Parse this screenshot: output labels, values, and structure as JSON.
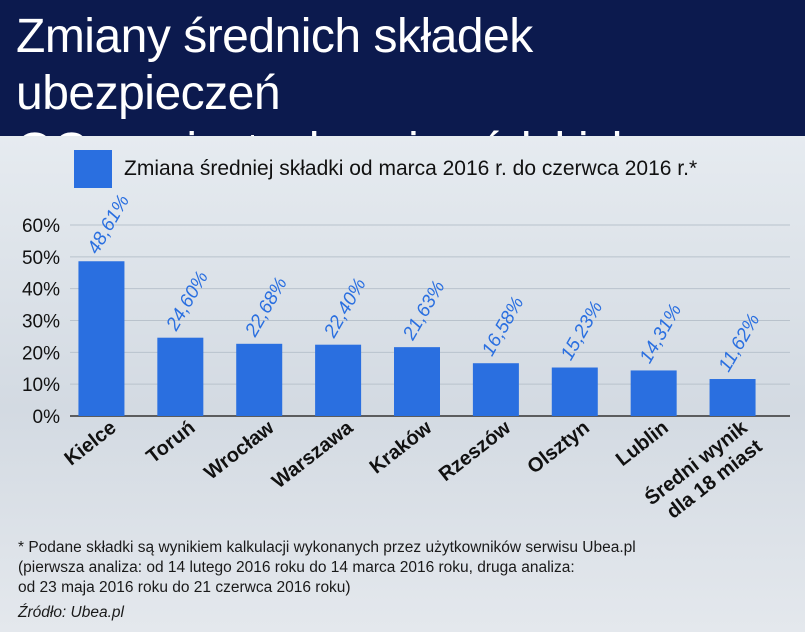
{
  "title": "Zmiany średnich składek ubezpieczeń\nOC w miastach wojewódzkich",
  "legend_label": "Zmiana średniej składki od marca 2016 r. do czerwca 2016 r.*",
  "footnote": "* Podane składki są wynikiem kalkulacji wykonanych przez użytkowników serwisu Ubea.pl\n(pierwsza analiza: od 14 lutego 2016 roku do 14 marca 2016 roku, druga analiza:\nod 23 maja 2016 roku do 21 czerwca 2016 roku)",
  "source": "Źródło: Ubea.pl",
  "colors": {
    "bar": "#2a6fe0",
    "header": "#0c1a4e",
    "label": "#2a6fe0"
  },
  "chart_data": {
    "type": "bar",
    "title": "Zmiany średnich składek ubezpieczeń OC w miastach wojewódzkich",
    "series_name": "Zmiana średniej składki od marca 2016 r. do czerwca 2016 r.*",
    "categories": [
      "Kielce",
      "Toruń",
      "Wrocław",
      "Warszawa",
      "Kraków",
      "Rzeszów",
      "Olsztyn",
      "Lublin",
      "Średni wynik\ndla 18 miast"
    ],
    "values": [
      48.61,
      24.6,
      22.68,
      22.4,
      21.63,
      16.58,
      15.23,
      14.31,
      11.62
    ],
    "value_labels": [
      "48,61%",
      "24,60%",
      "22,68%",
      "22,40%",
      "21,63%",
      "16,58%",
      "15,23%",
      "14,31%",
      "11,62%"
    ],
    "y_ticks": [
      0,
      10,
      20,
      30,
      40,
      50,
      60
    ],
    "y_tick_labels": [
      "0%",
      "10%",
      "20%",
      "30%",
      "40%",
      "50%",
      "60%"
    ],
    "ylim": [
      0,
      60
    ],
    "xlabel": "",
    "ylabel": "",
    "legend_position": "top"
  }
}
